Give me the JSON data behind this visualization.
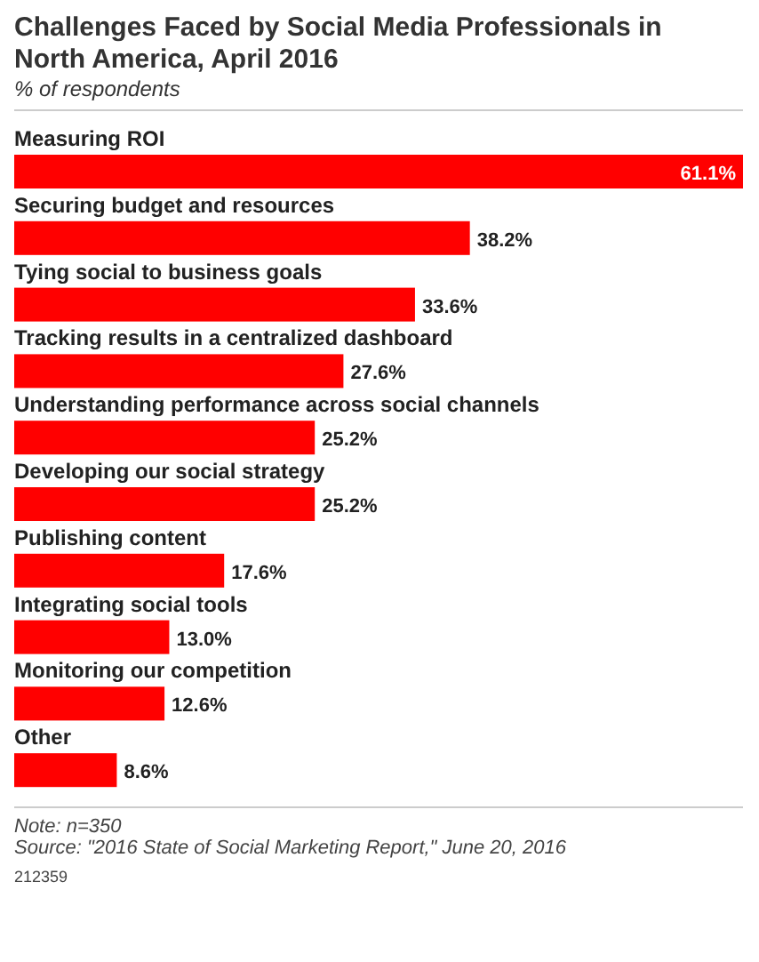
{
  "chart_data": {
    "type": "bar",
    "orientation": "horizontal",
    "title": "Challenges Faced by Social Media Professionals in North America, April 2016",
    "subtitle": "% of respondents",
    "categories": [
      "Measuring ROI",
      "Securing budget and resources",
      "Tying social to business goals",
      "Tracking results in a centralized dashboard",
      "Understanding performance across social channels",
      "Developing our social strategy",
      "Publishing content",
      "Integrating social tools",
      "Monitoring our competition",
      "Other"
    ],
    "values": [
      61.1,
      38.2,
      33.6,
      27.6,
      25.2,
      25.2,
      17.6,
      13.0,
      12.6,
      8.6
    ],
    "value_labels": [
      "61.1%",
      "38.2%",
      "33.6%",
      "27.6%",
      "25.2%",
      "25.2%",
      "17.6%",
      "13.0%",
      "12.6%",
      "8.6%"
    ],
    "color": "#ff0000",
    "annotations": [
      "Note: n=350",
      "Source: \"2016 State of Social Marketing Report,\" June 20, 2016",
      "212359"
    ]
  }
}
